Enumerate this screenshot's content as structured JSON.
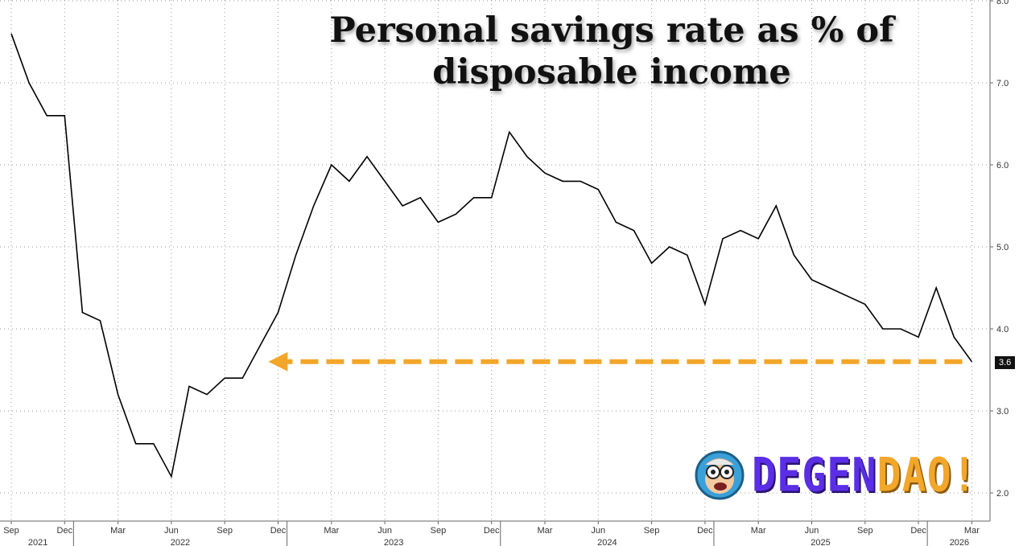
{
  "chart_data": {
    "type": "line",
    "title": "Personal savings rate as % of disposable income",
    "series": [
      {
        "x": [
          "2021-09",
          "2021-10",
          "2021-11",
          "2021-12",
          "2022-01",
          "2022-02",
          "2022-03",
          "2022-04",
          "2022-05",
          "2022-06",
          "2022-07",
          "2022-08",
          "2022-09",
          "2022-10",
          "2022-11",
          "2022-12",
          "2023-01",
          "2023-02",
          "2023-03",
          "2023-04",
          "2023-05",
          "2023-06",
          "2023-07",
          "2023-08",
          "2023-09",
          "2023-10",
          "2023-11",
          "2023-12",
          "2024-01",
          "2024-02",
          "2024-03",
          "2024-04",
          "2024-05",
          "2024-06",
          "2024-07",
          "2024-08",
          "2024-09",
          "2024-10",
          "2024-11",
          "2024-12",
          "2025-01",
          "2025-02",
          "2025-03",
          "2025-04",
          "2025-05",
          "2025-06",
          "2025-07",
          "2025-08",
          "2025-09",
          "2025-10",
          "2025-11",
          "2025-12",
          "2026-01",
          "2026-02",
          "2026-03"
        ],
        "values": [
          7.6,
          7.0,
          6.6,
          6.6,
          4.2,
          4.1,
          3.2,
          2.6,
          2.6,
          2.2,
          3.3,
          3.2,
          3.4,
          3.4,
          3.8,
          4.2,
          4.9,
          5.5,
          6.0,
          5.8,
          6.1,
          5.8,
          5.5,
          5.6,
          5.3,
          5.4,
          5.6,
          5.6,
          6.4,
          6.1,
          5.9,
          5.8,
          5.8,
          5.7,
          5.3,
          5.2,
          4.8,
          5.0,
          4.9,
          4.3,
          5.1,
          5.2,
          5.1,
          5.5,
          4.9,
          4.6,
          4.5,
          4.4,
          4.3,
          4.0,
          4.0,
          3.9,
          4.5,
          3.9,
          3.6
        ],
        "color": "#000000"
      }
    ],
    "y_axis": {
      "side": "right",
      "ticks": [
        "2.0",
        "3.0",
        "4.0",
        "5.0",
        "6.0",
        "7.0",
        "8.0"
      ],
      "ylim": [
        1.85,
        8.0
      ],
      "last_value_label": "3.6"
    },
    "x_axis": {
      "month_ticks": [
        "Sep",
        "Dec",
        "Mar",
        "Jun",
        "Sep",
        "Dec",
        "Mar",
        "Jun",
        "Sep",
        "Dec",
        "Mar",
        "Jun",
        "Sep",
        "Dec",
        "Mar",
        "Jun",
        "Sep",
        "Dec",
        "Mar"
      ],
      "year_labels": [
        "2021",
        "2022",
        "2023",
        "2024",
        "2025",
        "2026"
      ]
    },
    "grid": true,
    "annotation": {
      "type": "dashed-arrow",
      "color": "#f2a62a",
      "from_value": 3.6,
      "direction": "left",
      "points_to": "2022-11"
    }
  },
  "logo": {
    "part1": "DEGEN",
    "part2": "DAO!",
    "colors": {
      "part1": "#5b2ee6",
      "part2": "#f2a62a"
    }
  }
}
